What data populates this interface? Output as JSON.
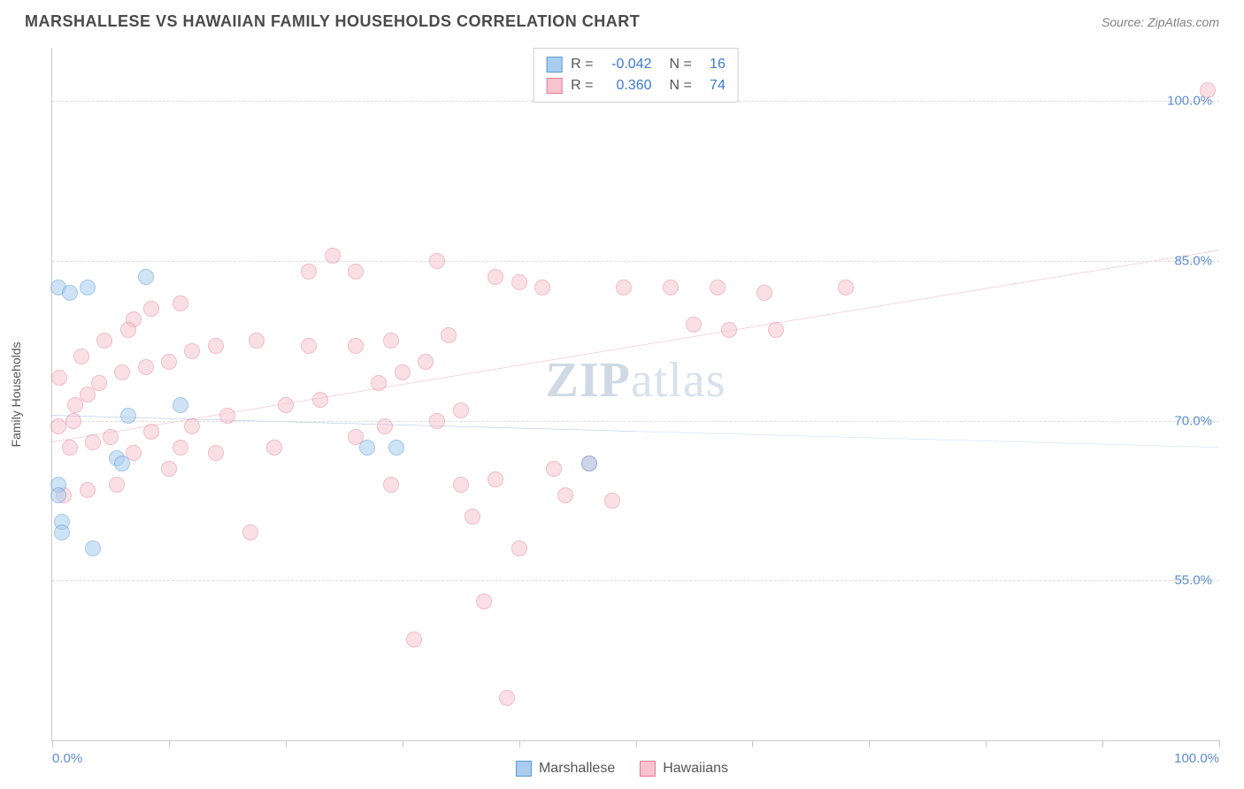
{
  "header": {
    "title": "MARSHALLESE VS HAWAIIAN FAMILY HOUSEHOLDS CORRELATION CHART",
    "source": "Source: ZipAtlas.com"
  },
  "watermark": {
    "pre": "ZIP",
    "post": "atlas"
  },
  "chart": {
    "type": "scatter",
    "background_color": "#ffffff",
    "grid_color": "#dcdcdc",
    "border_color": "#c9c9c9",
    "label_color": "#5b8dd6",
    "axis_title_color": "#555555",
    "y_axis_title": "Family Households",
    "xlim": [
      0,
      100
    ],
    "ylim": [
      40,
      105
    ],
    "y_gridlines": [
      55,
      70,
      85,
      100
    ],
    "y_tick_labels": [
      "55.0%",
      "70.0%",
      "85.0%",
      "100.0%"
    ],
    "x_ticks": [
      0,
      10,
      20,
      30,
      40,
      50,
      60,
      70,
      80,
      90,
      100
    ],
    "x_tick_labels": {
      "0": "0.0%",
      "100": "100.0%"
    },
    "point_radius": 9,
    "series": {
      "marshallese": {
        "label": "Marshallese",
        "fill": "#a9cdf0",
        "stroke": "#5d9ad1",
        "fill_opacity": 0.55,
        "trend": {
          "y_at_x0": 70.5,
          "y_at_x100": 67.5,
          "solid_until_x": 50,
          "color": "#3a72c4",
          "width": 2
        },
        "points": [
          [
            0.5,
            82.5
          ],
          [
            1.5,
            82.0
          ],
          [
            3.0,
            82.5
          ],
          [
            8.0,
            83.5
          ],
          [
            0.5,
            64.0
          ],
          [
            0.5,
            63.0
          ],
          [
            0.8,
            60.5
          ],
          [
            0.8,
            59.5
          ],
          [
            3.5,
            58.0
          ],
          [
            5.5,
            66.5
          ],
          [
            6.0,
            66.0
          ],
          [
            6.5,
            70.5
          ],
          [
            11.0,
            71.5
          ],
          [
            27.0,
            67.5
          ],
          [
            29.5,
            67.5
          ],
          [
            46.0,
            66.0
          ]
        ]
      },
      "hawaiians": {
        "label": "Hawaiians",
        "fill": "#f7c3ce",
        "stroke": "#e27a95",
        "fill_opacity": 0.5,
        "trend": {
          "y_at_x0": 68.0,
          "y_at_x100": 86.0,
          "solid_until_x": 100,
          "color": "#e55383",
          "width": 2
        },
        "points": [
          [
            99,
            101
          ],
          [
            68,
            82.5
          ],
          [
            61,
            82
          ],
          [
            57,
            82.5
          ],
          [
            53,
            82.5
          ],
          [
            49,
            82.5
          ],
          [
            42,
            82.5
          ],
          [
            40,
            83
          ],
          [
            38,
            83.5
          ],
          [
            33,
            85
          ],
          [
            26,
            84
          ],
          [
            24,
            85.5
          ],
          [
            22,
            84
          ],
          [
            11,
            81
          ],
          [
            8.5,
            80.5
          ],
          [
            7,
            79.5
          ],
          [
            62,
            78.5
          ],
          [
            58,
            78.5
          ],
          [
            55,
            79
          ],
          [
            34,
            78
          ],
          [
            29,
            77.5
          ],
          [
            26,
            77
          ],
          [
            22,
            77
          ],
          [
            17.5,
            77.5
          ],
          [
            14,
            77
          ],
          [
            12,
            76.5
          ],
          [
            10,
            75.5
          ],
          [
            8,
            75
          ],
          [
            6,
            74.5
          ],
          [
            4,
            73.5
          ],
          [
            3,
            72.5
          ],
          [
            2,
            71.5
          ],
          [
            32,
            75.5
          ],
          [
            30,
            74.5
          ],
          [
            28,
            73.5
          ],
          [
            23,
            72
          ],
          [
            20,
            71.5
          ],
          [
            15,
            70.5
          ],
          [
            12,
            69.5
          ],
          [
            8.5,
            69
          ],
          [
            5,
            68.5
          ],
          [
            3.5,
            68
          ],
          [
            1.5,
            67.5
          ],
          [
            35,
            71
          ],
          [
            33,
            70
          ],
          [
            28.5,
            69.5
          ],
          [
            26,
            68.5
          ],
          [
            19,
            67.5
          ],
          [
            14,
            67
          ],
          [
            11,
            67.5
          ],
          [
            7,
            67
          ],
          [
            46,
            66
          ],
          [
            43,
            65.5
          ],
          [
            38,
            64.5
          ],
          [
            35,
            64
          ],
          [
            29,
            64
          ],
          [
            10,
            65.5
          ],
          [
            5.5,
            64
          ],
          [
            3,
            63.5
          ],
          [
            1,
            63
          ],
          [
            48,
            62.5
          ],
          [
            44,
            63
          ],
          [
            36,
            61
          ],
          [
            17,
            59.5
          ],
          [
            40,
            58
          ],
          [
            37,
            53
          ],
          [
            31,
            49.5
          ],
          [
            39,
            44
          ],
          [
            1.8,
            70
          ],
          [
            0.5,
            69.5
          ],
          [
            0.6,
            74
          ],
          [
            2.5,
            76
          ],
          [
            4.5,
            77.5
          ],
          [
            6.5,
            78.5
          ]
        ]
      }
    },
    "stats_box": {
      "rows": [
        {
          "swatch_fill": "#a9cdf0",
          "swatch_stroke": "#5d9ad1",
          "r": "-0.042",
          "n": "16"
        },
        {
          "swatch_fill": "#f7c3ce",
          "swatch_stroke": "#e27a95",
          "r": "0.360",
          "n": "74"
        }
      ],
      "r_label": "R =",
      "n_label": "N ="
    }
  },
  "bottom_legend": [
    {
      "fill": "#a9cdf0",
      "stroke": "#5d9ad1",
      "label": "Marshallese"
    },
    {
      "fill": "#f7c3ce",
      "stroke": "#e27a95",
      "label": "Hawaiians"
    }
  ]
}
